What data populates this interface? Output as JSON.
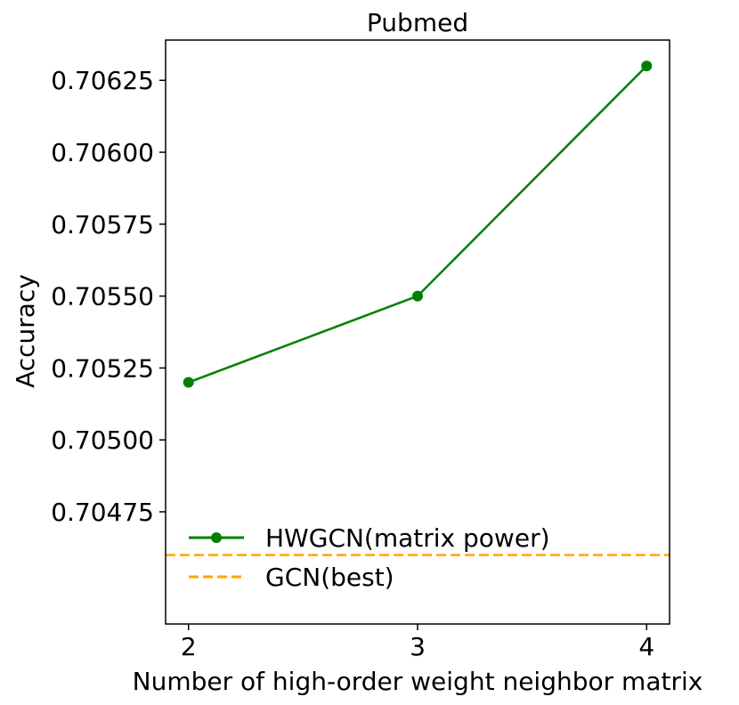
{
  "chart_data": {
    "type": "line",
    "title": "Pubmed",
    "xlabel": "Number of high-order weight neighbor matrix",
    "ylabel": "Accuracy",
    "x": [
      2,
      3,
      4
    ],
    "xticks": [
      "2",
      "3",
      "4"
    ],
    "yticks": [
      "0.70475",
      "0.70500",
      "0.70525",
      "0.70550",
      "0.70575",
      "0.70600",
      "0.70625"
    ],
    "ytick_values": [
      0.70475,
      0.705,
      0.70525,
      0.7055,
      0.70575,
      0.706,
      0.70625
    ],
    "xlim": [
      1.9,
      4.1
    ],
    "ylim": [
      0.70436,
      0.70639
    ],
    "grid": false,
    "legend_position": "lower-left",
    "series": [
      {
        "name": "HWGCN(matrix power)",
        "values": [
          0.7052,
          0.7055,
          0.7063
        ],
        "color": "#008000",
        "style": "solid",
        "marker": "circle"
      }
    ],
    "reference_lines": [
      {
        "name": "GCN(best)",
        "y": 0.7046,
        "color": "#ffa500",
        "style": "dashed"
      }
    ]
  }
}
